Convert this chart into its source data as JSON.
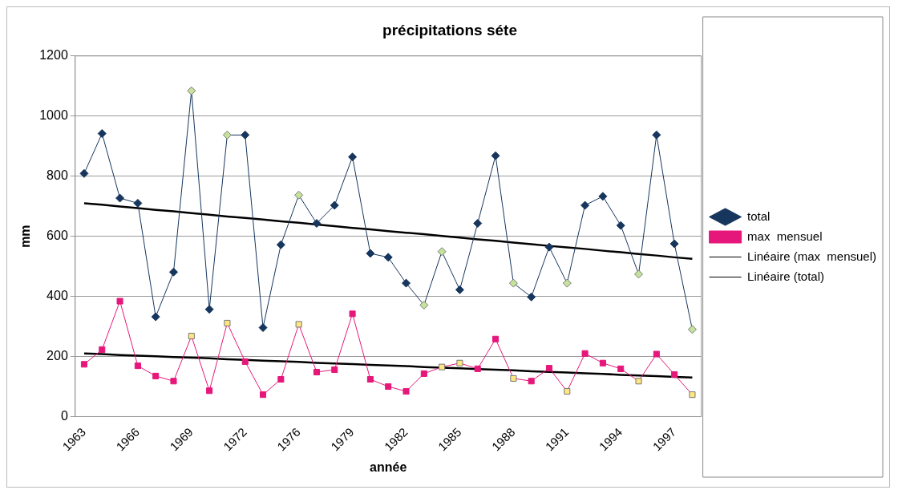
{
  "chart_data": {
    "type": "line",
    "title": "précipitations séte",
    "xlabel": "année",
    "ylabel": "mm",
    "categories": [
      "1963",
      null,
      null,
      "1966",
      null,
      null,
      "1969",
      null,
      null,
      "1972",
      null,
      null,
      "1976",
      null,
      null,
      "1979",
      null,
      null,
      "1982",
      null,
      null,
      "1985",
      null,
      null,
      "1988",
      null,
      null,
      "1991",
      null,
      null,
      "1994",
      null,
      null,
      "1997",
      null
    ],
    "series": [
      {
        "name": "total",
        "color": "#17365d",
        "marker": "diamond",
        "values": [
          809,
          942,
          727,
          710,
          332,
          481,
          1084,
          357,
          937,
          937,
          296,
          572,
          737,
          643,
          703,
          864,
          543,
          530,
          444,
          371,
          549,
          422,
          643,
          868,
          444,
          398,
          564,
          444,
          703,
          733,
          636,
          474,
          937,
          575,
          290
        ],
        "colors": [
          "#17365d",
          "#17365d",
          "#17365d",
          "#17365d",
          "#17365d",
          "#17365d",
          "#c5e39a",
          "#17365d",
          "#c5e39a",
          "#17365d",
          "#17365d",
          "#17365d",
          "#c5e39a",
          "#17365d",
          "#17365d",
          "#17365d",
          "#17365d",
          "#17365d",
          "#17365d",
          "#c5e39a",
          "#c5e39a",
          "#17365d",
          "#17365d",
          "#17365d",
          "#c5e39a",
          "#17365d",
          "#17365d",
          "#c5e39a",
          "#17365d",
          "#17365d",
          "#17365d",
          "#c5e39a",
          "#17365d",
          "#17365d",
          "#c5e39a"
        ]
      },
      {
        "name": "max  mensuel",
        "color": "#e6177a",
        "marker": "square",
        "values": [
          174,
          223,
          384,
          169,
          135,
          118,
          268,
          86,
          311,
          183,
          73,
          124,
          307,
          148,
          156,
          342,
          124,
          100,
          84,
          143,
          165,
          178,
          159,
          258,
          127,
          118,
          161,
          84,
          210,
          178,
          159,
          118,
          208,
          140,
          73
        ],
        "colors": [
          "#e6177a",
          "#e6177a",
          "#e6177a",
          "#e6177a",
          "#e6177a",
          "#e6177a",
          "#ffe680",
          "#e6177a",
          "#ffe680",
          "#e6177a",
          "#e6177a",
          "#e6177a",
          "#ffe680",
          "#e6177a",
          "#e6177a",
          "#e6177a",
          "#e6177a",
          "#e6177a",
          "#e6177a",
          "#e6177a",
          "#ffe680",
          "#ffe680",
          "#e6177a",
          "#e6177a",
          "#ffe680",
          "#e6177a",
          "#e6177a",
          "#ffe680",
          "#e6177a",
          "#e6177a",
          "#e6177a",
          "#ffe680",
          "#e6177a",
          "#e6177a",
          "#ffe680"
        ]
      },
      {
        "name": "Linéaire (max  mensuel)",
        "color": "#000000",
        "marker": "none",
        "values": [
          210,
          208,
          205,
          203,
          201,
          198,
          196,
          194,
          191,
          189,
          186,
          184,
          182,
          179,
          177,
          175,
          172,
          170,
          168,
          165,
          163,
          161,
          158,
          156,
          154,
          151,
          149,
          147,
          144,
          142,
          139,
          137,
          135,
          132,
          130
        ]
      },
      {
        "name": "Linéaire (total)",
        "color": "#000000",
        "marker": "none",
        "values": [
          710,
          705,
          699,
          694,
          688,
          683,
          677,
          672,
          666,
          661,
          656,
          650,
          645,
          639,
          634,
          628,
          623,
          617,
          612,
          607,
          601,
          596,
          590,
          585,
          579,
          574,
          568,
          563,
          558,
          552,
          547,
          541,
          536,
          530,
          525
        ]
      }
    ],
    "ylim": [
      0,
      1200
    ],
    "yticks": [
      0,
      200,
      400,
      600,
      800,
      1000,
      1200
    ],
    "grid": "y",
    "legend": "right"
  }
}
